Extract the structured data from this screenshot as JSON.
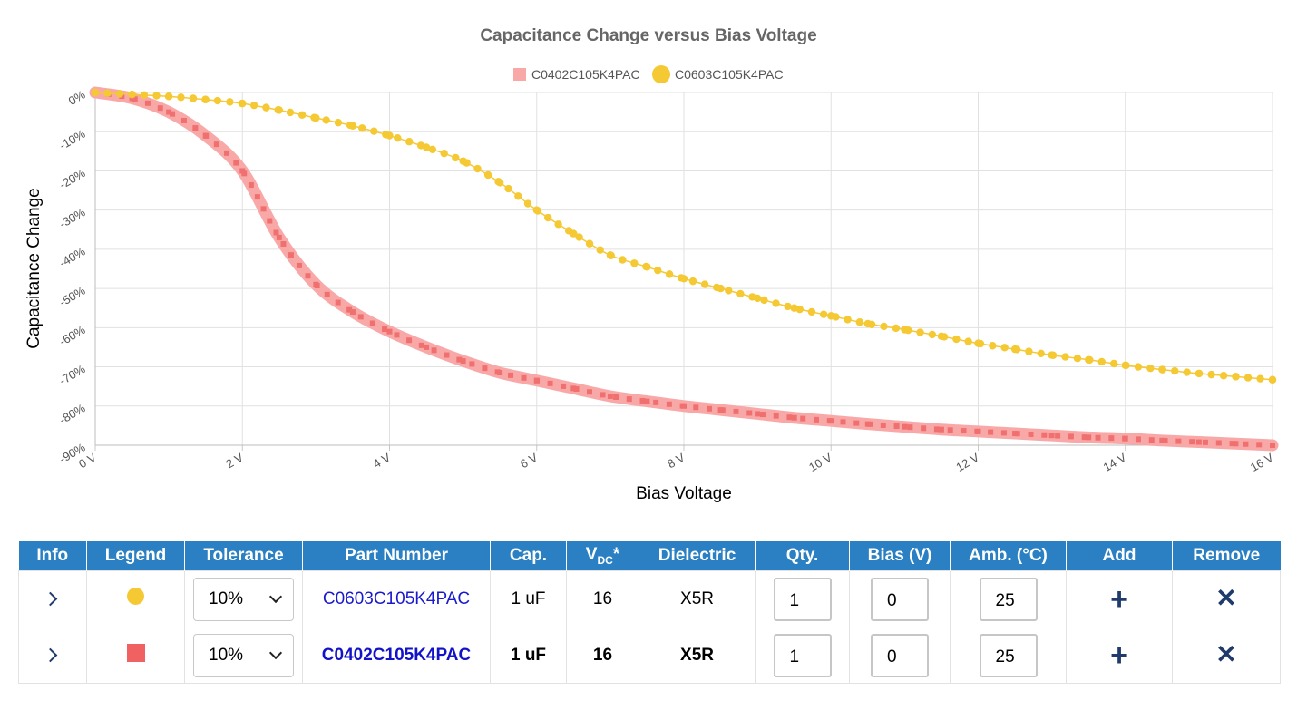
{
  "chart_data": {
    "type": "line",
    "title": "Capacitance Change versus Bias Voltage",
    "xlabel": "Bias Voltage",
    "ylabel": "Capacitance Change",
    "xlim": [
      0,
      16
    ],
    "ylim": [
      -90,
      0
    ],
    "xticks": [
      0,
      2,
      4,
      6,
      8,
      10,
      12,
      14,
      16
    ],
    "xtick_labels": [
      "0 V",
      "2 V",
      "4 V",
      "6 V",
      "8 V",
      "10 V",
      "12 V",
      "14 V",
      "16 V"
    ],
    "yticks": [
      0,
      -10,
      -20,
      -30,
      -40,
      -50,
      -60,
      -70,
      -80,
      -90
    ],
    "ytick_labels": [
      "0%",
      "-10%",
      "-20%",
      "-30%",
      "-40%",
      "-50%",
      "-60%",
      "-70%",
      "-80%",
      "-90%"
    ],
    "grid": true,
    "legend_position": "top-center",
    "series": [
      {
        "name": "C0402C105K4PAC",
        "color": "#f46b6b",
        "marker": "square",
        "x": [
          0,
          0.5,
          1,
          1.5,
          2,
          2.5,
          3,
          3.5,
          4,
          4.5,
          5,
          5.5,
          6,
          6.5,
          7,
          7.5,
          8,
          8.5,
          9,
          9.5,
          10,
          10.5,
          11,
          11.5,
          12,
          12.5,
          13,
          13.5,
          14,
          14.5,
          15,
          15.5,
          16
        ],
        "y": [
          0,
          -1.5,
          -5,
          -11,
          -20,
          -37,
          -49,
          -56,
          -61,
          -65,
          -68.5,
          -71.5,
          -73.5,
          -75.5,
          -77.5,
          -78.8,
          -80,
          -81,
          -82,
          -83,
          -83.8,
          -84.6,
          -85.3,
          -86,
          -86.5,
          -87,
          -87.5,
          -88,
          -88.3,
          -88.8,
          -89.2,
          -89.6,
          -90
        ]
      },
      {
        "name": "C0603C105K4PAC",
        "color": "#f5c933",
        "marker": "circle",
        "x": [
          0,
          0.5,
          1,
          1.5,
          2,
          2.5,
          3,
          3.5,
          4,
          4.5,
          5,
          5.5,
          6,
          6.5,
          7,
          7.5,
          8,
          8.5,
          9,
          9.5,
          10,
          10.5,
          11,
          11.5,
          12,
          12.5,
          13,
          13.5,
          14,
          14.5,
          15,
          15.5,
          16
        ],
        "y": [
          0,
          -0.5,
          -1,
          -1.8,
          -2.8,
          -4.5,
          -6.5,
          -8.5,
          -11,
          -14,
          -17.5,
          -23,
          -30,
          -36,
          -41.5,
          -44.5,
          -47.5,
          -50,
          -52.5,
          -55,
          -57,
          -59,
          -60.5,
          -62.2,
          -64,
          -65.5,
          -67,
          -68.2,
          -69.6,
          -70.7,
          -71.7,
          -72.5,
          -73.3
        ]
      }
    ]
  },
  "table": {
    "headers": {
      "info": "Info",
      "legend": "Legend",
      "tolerance": "Tolerance",
      "part_number": "Part Number",
      "cap": "Cap.",
      "vdc_main": "V",
      "vdc_sub": "DC",
      "vdc_star": "*",
      "dielectric": "Dielectric",
      "qty": "Qty.",
      "bias": "Bias (V)",
      "amb": "Amb. (°C)",
      "add": "Add",
      "remove": "Remove"
    },
    "rows": [
      {
        "legend_color": "#f5c933",
        "tolerance": "10%",
        "part_number": "C0603C105K4PAC",
        "cap": "1 uF",
        "vdc": "16",
        "dielectric": "X5R",
        "qty": "1",
        "bias": "0",
        "amb": "25",
        "add_icon": "plus-icon",
        "remove_icon": "close-icon"
      },
      {
        "legend_color": "#f46b6b",
        "tolerance": "10%",
        "part_number": "C0402C105K4PAC",
        "cap": "1 uF",
        "vdc": "16",
        "dielectric": "X5R",
        "qty": "1",
        "bias": "0",
        "amb": "25",
        "add_icon": "plus-icon",
        "remove_icon": "close-icon"
      }
    ]
  }
}
